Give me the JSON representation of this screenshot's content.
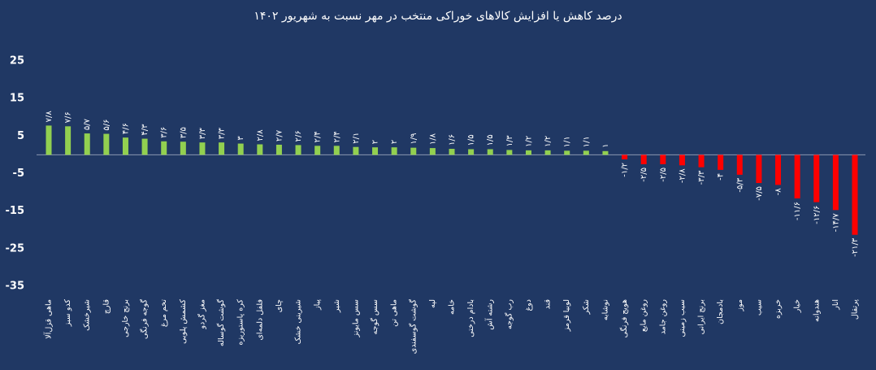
{
  "chart_data": {
    "type": "bar",
    "title": "درصد کاهش یا افزایش کالاهای خوراکی منتخب در مهر نسبت به شهریور ۱۴۰۲",
    "categories": [
      "ماهی قزل‌آلا",
      "کدو سبز",
      "شیرخشک",
      "قارچ",
      "برنج خارجی",
      "گوجه فرنگی",
      "تخم مرغ",
      "کشمش پلویی",
      "مغز گردو",
      "گوشت گوساله",
      "کره پاستوریزه",
      "فلفل دلمه‌ای",
      "چای",
      "شیرینی خشک",
      "پیاز",
      "شیر",
      "سس مایونز",
      "سس گوجه",
      "ماهی تن",
      "گوشت گوسفندی",
      "لپه",
      "خامه",
      "بادام درختی",
      "رشته آش",
      "رب گوجه",
      "دوغ",
      "قند",
      "لوبیا قرمز",
      "شکر",
      "نوشابه",
      "هویج فرنگی",
      "روغن مایع",
      "روغن جامد",
      "سیب زمینی",
      "برنج ایرانی",
      "بادمجان",
      "موز",
      "سیب",
      "خربزه",
      "خیار",
      "هندوانه",
      "انار",
      "پرتقال"
    ],
    "values": [
      7.8,
      7.6,
      5.7,
      5.6,
      4.6,
      4.3,
      3.6,
      3.5,
      3.3,
      3.3,
      3,
      2.8,
      2.7,
      2.6,
      2.4,
      2.4,
      2.1,
      2,
      2,
      1.9,
      1.8,
      1.6,
      1.5,
      1.5,
      1.3,
      1.2,
      1.2,
      1.1,
      1.1,
      1,
      -1.2,
      -2.5,
      -2.5,
      -2.8,
      -3.3,
      -4,
      -5.3,
      -7.5,
      -8,
      -11.6,
      -12.6,
      -14.7,
      -21.3
    ],
    "value_labels": [
      "۷/۸",
      "۷/۶",
      "۵/۷",
      "۵/۶",
      "۴/۶",
      "۴/۳",
      "۳/۶",
      "۳/۵",
      "۳/۳",
      "۳/۳",
      "۳",
      "۲/۸",
      "۲/۷",
      "۲/۶",
      "۲/۴",
      "۲/۴",
      "۲/۱",
      "۲",
      "۲",
      "۱/۹",
      "۱/۸",
      "۱/۶",
      "۱/۵",
      "۱/۵",
      "۱/۳",
      "۱/۲",
      "۱/۲",
      "۱/۱",
      "۱/۱",
      "۱",
      "-۱/۲",
      "-۲/۵",
      "-۲/۵",
      "-۲/۸",
      "-۳/۳",
      "-۴",
      "-۵/۳",
      "-۷/۵",
      "-۸",
      "-۱۱/۶",
      "-۱۲/۶",
      "-۱۴/۷",
      "-۲۱/۳"
    ],
    "positive_color": "#92d050",
    "negative_color": "#ff0000",
    "ylim": [
      -35,
      25
    ],
    "yticks": [
      25,
      15,
      5,
      -5,
      -15,
      -25,
      -35
    ],
    "grid": false
  }
}
